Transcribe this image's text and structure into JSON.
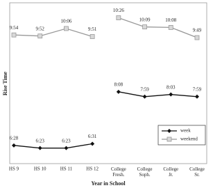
{
  "chart_data": {
    "type": "line",
    "x_label": "Year in School",
    "y_label": "Rise Time",
    "categories": [
      "HS 9",
      "HS 10",
      "HS 11",
      "HS 12",
      "College Fresh.",
      "College Soph.",
      "College Jr.",
      "College Sr."
    ],
    "break_before": [
      4
    ],
    "ylim": [
      5.9,
      10.9
    ],
    "legend": "lower right",
    "series": [
      {
        "name": "week",
        "color": "#111111",
        "marker": "diamond",
        "values": [
          6.4667,
          6.3833,
          6.3833,
          6.5167,
          8.1333,
          7.9833,
          8.05,
          7.9833
        ],
        "value_labels": [
          "6:28",
          "6:23",
          "6:23",
          "6:31",
          "8:08",
          "7:59",
          "8:03",
          "7:59"
        ]
      },
      {
        "name": "weekend",
        "color": "#999999",
        "marker": "square",
        "values": [
          9.9,
          9.8667,
          10.1,
          9.85,
          10.4333,
          10.15,
          10.1333,
          9.8167
        ],
        "value_labels": [
          "9:54",
          "9:52",
          "10:06",
          "9:51",
          "10:26",
          "10:09",
          "10:08",
          "9:49"
        ]
      }
    ]
  }
}
